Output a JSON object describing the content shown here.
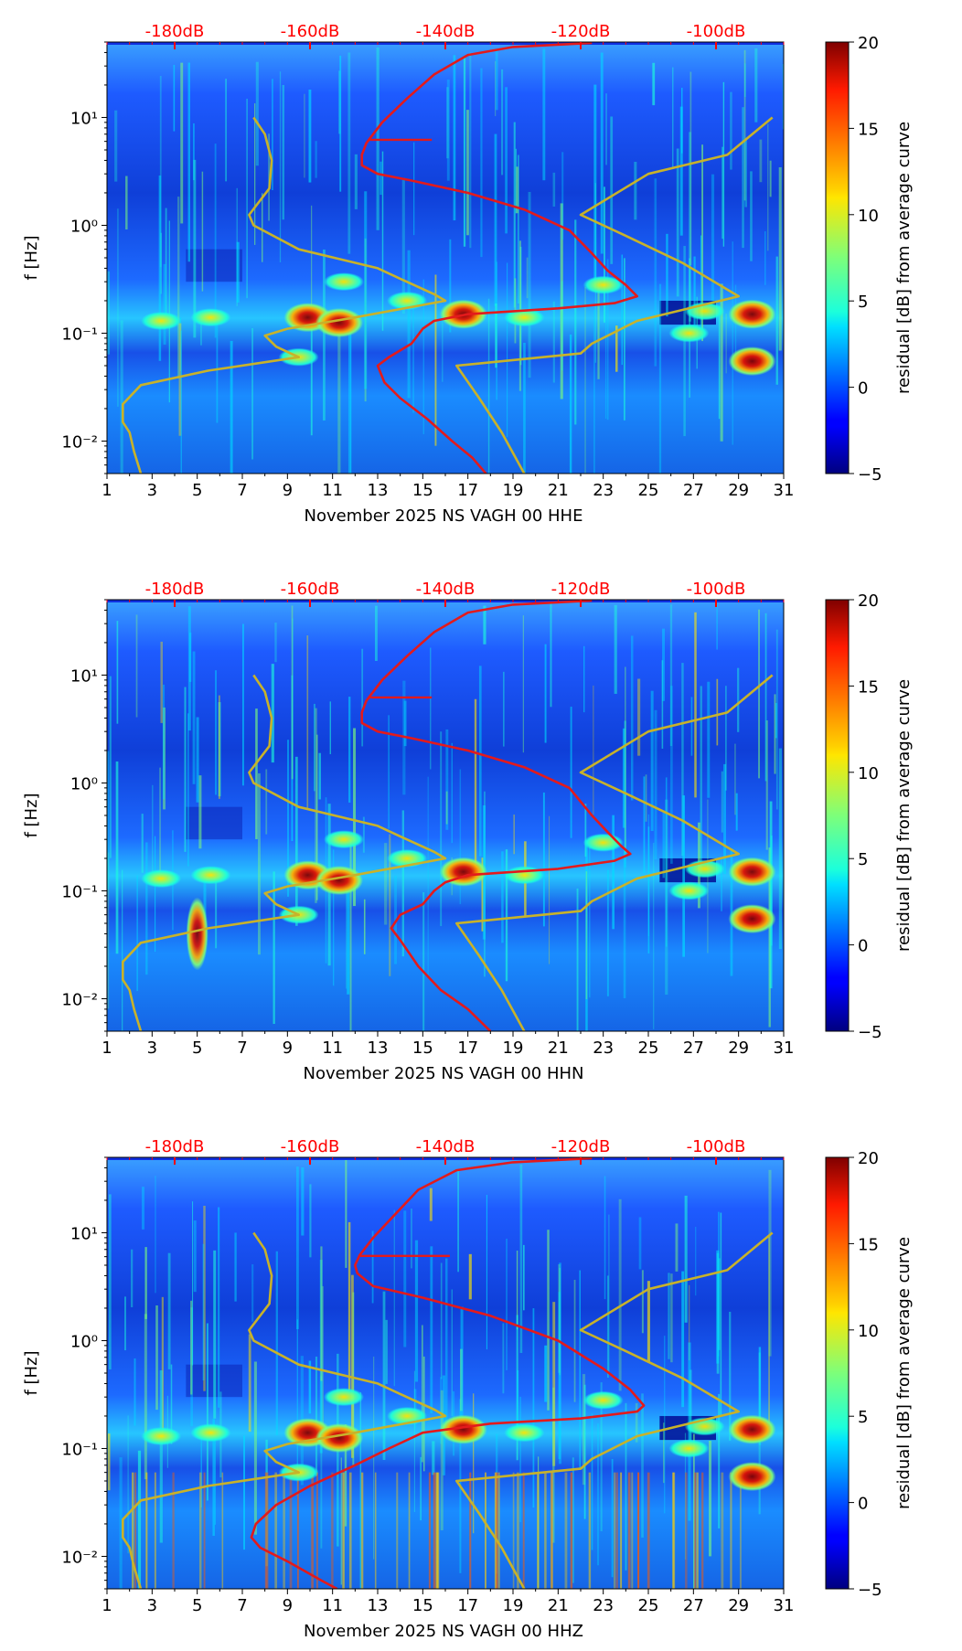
{
  "figure": {
    "colormap": "jet",
    "colors": {
      "db_scale": "#ff0000",
      "mean_curve": "#e31a1c",
      "model_curves": "#c8b22a",
      "axis": "#000000"
    }
  },
  "chart_data": [
    {
      "type": "heatmap",
      "title": "",
      "xlabel": "November 2025 NS VAGH 00 HHE",
      "ylabel": "f [Hz]",
      "xlim": [
        1,
        31
      ],
      "ylim": [
        0.005,
        50
      ],
      "yscale": "log",
      "x_ticks": [
        1,
        3,
        5,
        7,
        9,
        11,
        13,
        15,
        17,
        19,
        21,
        23,
        25,
        27,
        29,
        31
      ],
      "y_tick_labels": [
        "10⁻²",
        "10⁻¹",
        "10⁰",
        "10¹"
      ],
      "y_tick_values": [
        0.01,
        0.1,
        1,
        10
      ],
      "top_axis_labels": [
        "-180dB",
        "-160dB",
        "-140dB",
        "-120dB",
        "-100dB"
      ],
      "top_axis_values": [
        4,
        10,
        16,
        22,
        28
      ],
      "colorbar": {
        "label": "residual [dB] from average curve",
        "min": -5,
        "max": 20,
        "ticks": [
          -5,
          0,
          5,
          10,
          15,
          20
        ]
      },
      "series": [
        {
          "name": "average PSD curve (red)",
          "points": [
            [
              22.5,
              49
            ],
            [
              19,
              45
            ],
            [
              17,
              38
            ],
            [
              15.5,
              25
            ],
            [
              14.3,
              15
            ],
            [
              13.2,
              9
            ],
            [
              12.5,
              5.8
            ],
            [
              12.3,
              4.5
            ],
            [
              12.3,
              3.6
            ],
            [
              13,
              3
            ],
            [
              14.5,
              2.6
            ],
            [
              17,
              2
            ],
            [
              19.5,
              1.4
            ],
            [
              21.5,
              0.9
            ],
            [
              22.5,
              0.55
            ],
            [
              23.2,
              0.38
            ],
            [
              24,
              0.28
            ],
            [
              24.5,
              0.22
            ],
            [
              23.5,
              0.19
            ],
            [
              21,
              0.17
            ],
            [
              17,
              0.15
            ],
            [
              15.5,
              0.13
            ],
            [
              15,
              0.11
            ],
            [
              14.5,
              0.08
            ],
            [
              13.5,
              0.06
            ],
            [
              13,
              0.05
            ],
            [
              13.3,
              0.035
            ],
            [
              14,
              0.025
            ],
            [
              15.2,
              0.016
            ],
            [
              16.3,
              0.01
            ],
            [
              17.2,
              0.007
            ],
            [
              17.8,
              0.005
            ]
          ]
        },
        {
          "name": "low noise model (yellow)",
          "points": [
            [
              2.5,
              0.005
            ],
            [
              2.2,
              0.008
            ],
            [
              2.0,
              0.012
            ],
            [
              1.7,
              0.015
            ],
            [
              1.7,
              0.022
            ],
            [
              2.5,
              0.033
            ],
            [
              5.5,
              0.045
            ],
            [
              9.5,
              0.06
            ],
            [
              8.5,
              0.075
            ],
            [
              8.0,
              0.095
            ],
            [
              9.0,
              0.11
            ],
            [
              12.0,
              0.14
            ],
            [
              16.0,
              0.2
            ],
            [
              15.5,
              0.23
            ],
            [
              14.0,
              0.32
            ],
            [
              13.0,
              0.4
            ],
            [
              9.5,
              0.6
            ],
            [
              7.5,
              1.0
            ],
            [
              7.3,
              1.25
            ],
            [
              8.2,
              2.2
            ],
            [
              8.3,
              4.0
            ],
            [
              8.0,
              7.0
            ],
            [
              7.5,
              10.0
            ]
          ]
        },
        {
          "name": "high noise model (yellow)",
          "points": [
            [
              19.5,
              0.005
            ],
            [
              18.5,
              0.012
            ],
            [
              17.5,
              0.025
            ],
            [
              16.5,
              0.05
            ],
            [
              22.0,
              0.065
            ],
            [
              22.5,
              0.08
            ],
            [
              24.5,
              0.13
            ],
            [
              29.0,
              0.22
            ],
            [
              26.5,
              0.45
            ],
            [
              24.0,
              0.8
            ],
            [
              22.0,
              1.25
            ],
            [
              25.0,
              3.0
            ],
            [
              28.5,
              4.5
            ],
            [
              30.5,
              10.0
            ]
          ]
        }
      ]
    },
    {
      "type": "heatmap",
      "title": "",
      "xlabel": "November 2025 NS VAGH 00 HHN",
      "ylabel": "f [Hz]",
      "xlim": [
        1,
        31
      ],
      "ylim": [
        0.005,
        50
      ],
      "yscale": "log",
      "x_ticks": [
        1,
        3,
        5,
        7,
        9,
        11,
        13,
        15,
        17,
        19,
        21,
        23,
        25,
        27,
        29,
        31
      ],
      "y_tick_labels": [
        "10⁻²",
        "10⁻¹",
        "10⁰",
        "10¹"
      ],
      "y_tick_values": [
        0.01,
        0.1,
        1,
        10
      ],
      "top_axis_labels": [
        "-180dB",
        "-160dB",
        "-140dB",
        "-120dB",
        "-100dB"
      ],
      "top_axis_values": [
        4,
        10,
        16,
        22,
        28
      ],
      "colorbar": {
        "label": "residual [dB] from average curve",
        "min": -5,
        "max": 20,
        "ticks": [
          -5,
          0,
          5,
          10,
          15,
          20
        ]
      },
      "series": [
        {
          "name": "average PSD curve (red)",
          "points": [
            [
              22.5,
              49
            ],
            [
              19,
              45
            ],
            [
              17,
              38
            ],
            [
              15.5,
              25
            ],
            [
              14.3,
              15
            ],
            [
              13.2,
              9
            ],
            [
              12.5,
              5.8
            ],
            [
              12.3,
              4.5
            ],
            [
              12.3,
              3.6
            ],
            [
              13,
              3
            ],
            [
              14.5,
              2.6
            ],
            [
              17,
              2
            ],
            [
              19.5,
              1.4
            ],
            [
              21.5,
              0.9
            ],
            [
              22.5,
              0.5
            ],
            [
              23.2,
              0.35
            ],
            [
              23.8,
              0.26
            ],
            [
              24.2,
              0.22
            ],
            [
              23.5,
              0.19
            ],
            [
              21,
              0.16
            ],
            [
              17,
              0.14
            ],
            [
              16,
              0.12
            ],
            [
              15.5,
              0.1
            ],
            [
              15,
              0.075
            ],
            [
              14,
              0.06
            ],
            [
              13.6,
              0.045
            ],
            [
              14,
              0.035
            ],
            [
              14.8,
              0.02
            ],
            [
              15.8,
              0.012
            ],
            [
              17,
              0.008
            ],
            [
              18,
              0.005
            ]
          ]
        },
        {
          "name": "low noise model (yellow)",
          "points": [
            [
              2.5,
              0.005
            ],
            [
              2.2,
              0.008
            ],
            [
              2.0,
              0.012
            ],
            [
              1.7,
              0.015
            ],
            [
              1.7,
              0.022
            ],
            [
              2.5,
              0.033
            ],
            [
              5.5,
              0.045
            ],
            [
              9.5,
              0.06
            ],
            [
              8.5,
              0.075
            ],
            [
              8.0,
              0.095
            ],
            [
              9.0,
              0.11
            ],
            [
              12.0,
              0.14
            ],
            [
              16.0,
              0.2
            ],
            [
              15.5,
              0.23
            ],
            [
              14.0,
              0.32
            ],
            [
              13.0,
              0.4
            ],
            [
              9.5,
              0.6
            ],
            [
              7.5,
              1.0
            ],
            [
              7.3,
              1.25
            ],
            [
              8.2,
              2.2
            ],
            [
              8.3,
              4.0
            ],
            [
              8.0,
              7.0
            ],
            [
              7.5,
              10.0
            ]
          ]
        },
        {
          "name": "high noise model (yellow)",
          "points": [
            [
              19.5,
              0.005
            ],
            [
              18.5,
              0.012
            ],
            [
              17.5,
              0.025
            ],
            [
              16.5,
              0.05
            ],
            [
              22.0,
              0.065
            ],
            [
              22.5,
              0.08
            ],
            [
              24.5,
              0.13
            ],
            [
              29.0,
              0.22
            ],
            [
              26.5,
              0.45
            ],
            [
              24.0,
              0.8
            ],
            [
              22.0,
              1.25
            ],
            [
              25.0,
              3.0
            ],
            [
              28.5,
              4.5
            ],
            [
              30.5,
              10.0
            ]
          ]
        }
      ]
    },
    {
      "type": "heatmap",
      "title": "",
      "xlabel": "November 2025 NS VAGH 00 HHZ",
      "ylabel": "f [Hz]",
      "xlim": [
        1,
        31
      ],
      "ylim": [
        0.005,
        50
      ],
      "yscale": "log",
      "x_ticks": [
        1,
        3,
        5,
        7,
        9,
        11,
        13,
        15,
        17,
        19,
        21,
        23,
        25,
        27,
        29,
        31
      ],
      "y_tick_labels": [
        "10⁻²",
        "10⁻¹",
        "10⁰",
        "10¹"
      ],
      "y_tick_values": [
        0.01,
        0.1,
        1,
        10
      ],
      "top_axis_labels": [
        "-180dB",
        "-160dB",
        "-140dB",
        "-120dB",
        "-100dB"
      ],
      "top_axis_values": [
        4,
        10,
        16,
        22,
        28
      ],
      "colorbar": {
        "label": "residual [dB] from average curve",
        "min": -5,
        "max": 20,
        "ticks": [
          -5,
          0,
          5,
          10,
          15,
          20
        ]
      },
      "series": [
        {
          "name": "average PSD curve (red)",
          "points": [
            [
              22.5,
              49
            ],
            [
              19,
              45
            ],
            [
              16.5,
              38
            ],
            [
              14.8,
              25
            ],
            [
              13.8,
              15
            ],
            [
              12.8,
              9
            ],
            [
              12.2,
              6.2
            ],
            [
              12.0,
              5
            ],
            [
              12.1,
              4.2
            ],
            [
              12.8,
              3.2
            ],
            [
              15,
              2.5
            ],
            [
              18,
              1.7
            ],
            [
              21,
              1.0
            ],
            [
              23,
              0.55
            ],
            [
              24.2,
              0.35
            ],
            [
              24.8,
              0.25
            ],
            [
              24.5,
              0.22
            ],
            [
              22,
              0.19
            ],
            [
              18,
              0.17
            ],
            [
              15,
              0.14
            ],
            [
              13.5,
              0.1
            ],
            [
              12,
              0.07
            ],
            [
              10,
              0.045
            ],
            [
              8.5,
              0.03
            ],
            [
              7.6,
              0.02
            ],
            [
              7.4,
              0.015
            ],
            [
              7.8,
              0.012
            ],
            [
              9,
              0.009
            ],
            [
              10.5,
              0.006
            ],
            [
              11.2,
              0.005
            ]
          ]
        },
        {
          "name": "low noise model (yellow)",
          "points": [
            [
              2.5,
              0.005
            ],
            [
              2.2,
              0.008
            ],
            [
              2.0,
              0.012
            ],
            [
              1.7,
              0.015
            ],
            [
              1.7,
              0.022
            ],
            [
              2.5,
              0.033
            ],
            [
              5.5,
              0.045
            ],
            [
              9.5,
              0.06
            ],
            [
              8.5,
              0.075
            ],
            [
              8.0,
              0.095
            ],
            [
              9.0,
              0.11
            ],
            [
              12.0,
              0.14
            ],
            [
              16.0,
              0.2
            ],
            [
              15.5,
              0.23
            ],
            [
              14.0,
              0.32
            ],
            [
              13.0,
              0.4
            ],
            [
              9.5,
              0.6
            ],
            [
              7.5,
              1.0
            ],
            [
              7.3,
              1.25
            ],
            [
              8.2,
              2.2
            ],
            [
              8.3,
              4.0
            ],
            [
              8.0,
              7.0
            ],
            [
              7.5,
              10.0
            ]
          ]
        },
        {
          "name": "high noise model (yellow)",
          "points": [
            [
              19.5,
              0.005
            ],
            [
              18.5,
              0.012
            ],
            [
              17.5,
              0.025
            ],
            [
              16.5,
              0.05
            ],
            [
              22.0,
              0.065
            ],
            [
              22.5,
              0.08
            ],
            [
              24.5,
              0.13
            ],
            [
              29.0,
              0.22
            ],
            [
              26.5,
              0.45
            ],
            [
              24.0,
              0.8
            ],
            [
              22.0,
              1.25
            ],
            [
              25.0,
              3.0
            ],
            [
              28.5,
              4.5
            ],
            [
              30.5,
              10.0
            ]
          ]
        }
      ]
    }
  ]
}
